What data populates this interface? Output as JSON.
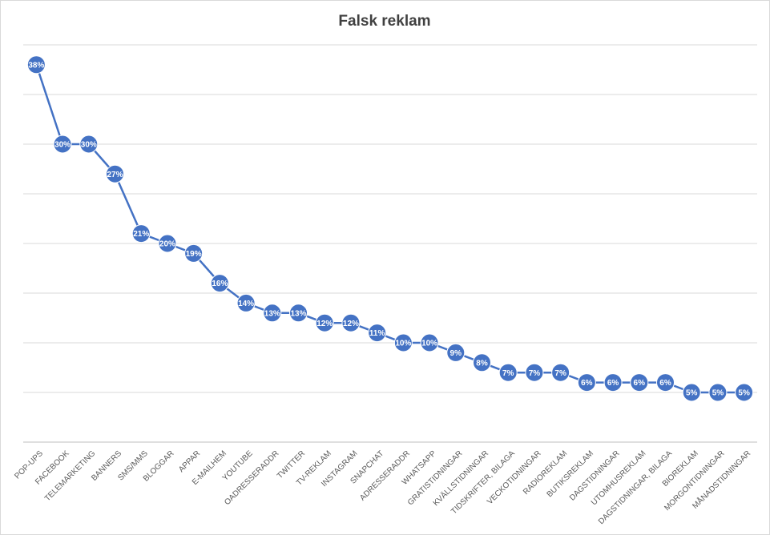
{
  "chart_data": {
    "type": "line",
    "title": "Falsk reklam",
    "categories": [
      "POP-UPS",
      "FACEBOOK",
      "TELEMARKETING",
      "BANNERS",
      "SMS/MMS",
      "BLOGGAR",
      "APPAR",
      "E-MAILHEM",
      "YOUTUBE",
      "OADRESSERADDR",
      "TWITTER",
      "TV-REKLAM",
      "INSTAGRAM",
      "SNAPCHAT",
      "ADRESSERADDR",
      "WHATSAPP",
      "GRATISTIDNINGAR",
      "KVÄLLSTIDNINGAR",
      "TIDSKRIFTER, BILAGA",
      "VECKOTIDNINGAR",
      "RADIOREKLAM",
      "BUTIKSREKLAM",
      "DAGSTIDNINGAR",
      "UTOMHUSREKLAM",
      "DAGSTIDNINGAR, BILAGA",
      "BIOREKLAM",
      "MORGONTIDNINGAR",
      "MÅNADSTIDNINGAR"
    ],
    "values": [
      38,
      30,
      30,
      27,
      21,
      20,
      19,
      16,
      14,
      13,
      13,
      12,
      12,
      11,
      10,
      10,
      9,
      8,
      7,
      7,
      7,
      6,
      6,
      6,
      6,
      5,
      5,
      5
    ],
    "value_labels": [
      "38%",
      "30%",
      "30%",
      "27%",
      "21%",
      "20%",
      "19%",
      "16%",
      "14%",
      "13%",
      "13%",
      "12%",
      "12%",
      "11%",
      "10%",
      "10%",
      "9%",
      "8%",
      "7%",
      "7%",
      "7%",
      "6%",
      "6%",
      "6%",
      "6%",
      "5%",
      "5%",
      "5%"
    ],
    "color": "#4472c4",
    "ylim": [
      0,
      40
    ],
    "yticks": [
      0,
      5,
      10,
      15,
      20,
      25,
      30,
      35,
      40
    ],
    "grid": true
  }
}
